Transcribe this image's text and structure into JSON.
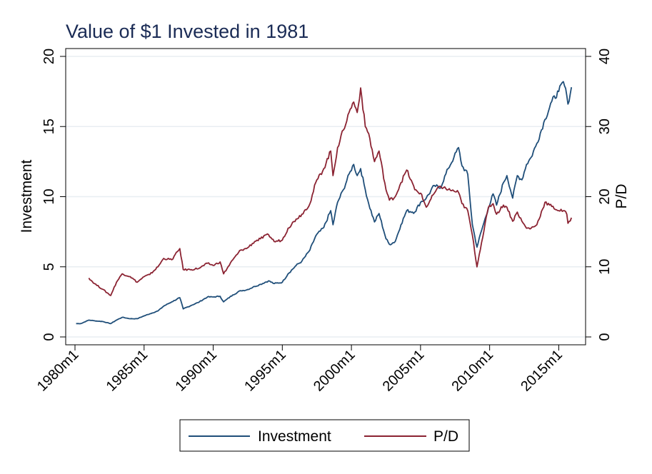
{
  "chart_data": {
    "type": "line",
    "title": "Value of $1 Invested in 1981",
    "xlabel": "",
    "x_ticks": [
      "1980m1",
      "1985m1",
      "1990m1",
      "1995m1",
      "2000m1",
      "2005m1",
      "2010m1",
      "2015m1"
    ],
    "xlim": [
      "1980m1",
      "2016m3"
    ],
    "y_left": {
      "label": "Investment",
      "ticks": [
        0,
        5,
        10,
        15,
        20
      ],
      "lim": [
        0,
        20
      ]
    },
    "y_right": {
      "label": "P/D",
      "ticks": [
        0,
        10,
        20,
        30,
        40
      ],
      "lim": [
        0,
        40
      ]
    },
    "grid": true,
    "legend_position": "bottom",
    "series": [
      {
        "name": "Investment",
        "axis": "left",
        "color": "#1f4e79",
        "points": [
          [
            "1980m2",
            0.95
          ],
          [
            "1980m6",
            0.95
          ],
          [
            "1981m1",
            1.2
          ],
          [
            "1981m6",
            1.15
          ],
          [
            "1982m1",
            1.1
          ],
          [
            "1982m8",
            0.95
          ],
          [
            "1983m1",
            1.2
          ],
          [
            "1983m6",
            1.4
          ],
          [
            "1984m1",
            1.3
          ],
          [
            "1984m7",
            1.3
          ],
          [
            "1985m1",
            1.5
          ],
          [
            "1985m6",
            1.65
          ],
          [
            "1986m1",
            1.85
          ],
          [
            "1986m6",
            2.2
          ],
          [
            "1987m1",
            2.5
          ],
          [
            "1987m8",
            2.8
          ],
          [
            "1987m11",
            2.0
          ],
          [
            "1988m6",
            2.25
          ],
          [
            "1989m1",
            2.5
          ],
          [
            "1989m8",
            2.85
          ],
          [
            "1990m1",
            2.85
          ],
          [
            "1990m7",
            2.9
          ],
          [
            "1990m10",
            2.5
          ],
          [
            "1991m6",
            3.0
          ],
          [
            "1992m1",
            3.3
          ],
          [
            "1992m6",
            3.35
          ],
          [
            "1993m1",
            3.6
          ],
          [
            "1993m6",
            3.75
          ],
          [
            "1994m1",
            4.0
          ],
          [
            "1994m6",
            3.8
          ],
          [
            "1995m1",
            3.9
          ],
          [
            "1995m6",
            4.5
          ],
          [
            "1996m1",
            5.1
          ],
          [
            "1996m6",
            5.4
          ],
          [
            "1997m1",
            6.2
          ],
          [
            "1997m6",
            7.2
          ],
          [
            "1998m1",
            7.8
          ],
          [
            "1998m7",
            9.0
          ],
          [
            "1998m9",
            8.0
          ],
          [
            "1999m1",
            9.6
          ],
          [
            "1999m6",
            10.5
          ],
          [
            "1999m12",
            11.8
          ],
          [
            "2000m3",
            12.3
          ],
          [
            "2000m6",
            11.5
          ],
          [
            "2000m9",
            12.0
          ],
          [
            "2001m1",
            10.5
          ],
          [
            "2001m4",
            9.5
          ],
          [
            "2001m9",
            8.2
          ],
          [
            "2002m1",
            8.8
          ],
          [
            "2002m7",
            7.0
          ],
          [
            "2002m10",
            6.6
          ],
          [
            "2003m3",
            6.8
          ],
          [
            "2003m8",
            8.0
          ],
          [
            "2004m1",
            9.0
          ],
          [
            "2004m8",
            8.9
          ],
          [
            "2005m1",
            9.6
          ],
          [
            "2005m6",
            9.9
          ],
          [
            "2006m1",
            10.8
          ],
          [
            "2006m6",
            10.6
          ],
          [
            "2007m1",
            12.0
          ],
          [
            "2007m6",
            12.8
          ],
          [
            "2007m10",
            13.5
          ],
          [
            "2008m1",
            12.2
          ],
          [
            "2008m6",
            11.6
          ],
          [
            "2008m10",
            8.0
          ],
          [
            "2009m2",
            6.4
          ],
          [
            "2009m6",
            7.6
          ],
          [
            "2009m12",
            9.2
          ],
          [
            "2010m4",
            10.2
          ],
          [
            "2010m7",
            9.4
          ],
          [
            "2011m1",
            11.0
          ],
          [
            "2011m4",
            11.5
          ],
          [
            "2011m9",
            9.9
          ],
          [
            "2012m1",
            11.5
          ],
          [
            "2012m5",
            11.2
          ],
          [
            "2012m9",
            12.3
          ],
          [
            "2013m1",
            12.8
          ],
          [
            "2013m6",
            13.8
          ],
          [
            "2014m1",
            15.5
          ],
          [
            "2014m7",
            16.8
          ],
          [
            "2015m1",
            17.5
          ],
          [
            "2015m5",
            18.2
          ],
          [
            "2015m8",
            17.2
          ],
          [
            "2015m9",
            16.6
          ],
          [
            "2015m12",
            17.8
          ]
        ]
      },
      {
        "name": "P/D",
        "axis": "right",
        "color": "#8b2332",
        "points": [
          [
            "1981m1",
            8.4
          ],
          [
            "1981m6",
            7.6
          ],
          [
            "1982m1",
            6.8
          ],
          [
            "1982m8",
            5.9
          ],
          [
            "1983m1",
            7.8
          ],
          [
            "1983m6",
            9.0
          ],
          [
            "1984m1",
            8.6
          ],
          [
            "1984m7",
            7.8
          ],
          [
            "1985m1",
            8.6
          ],
          [
            "1985m6",
            8.9
          ],
          [
            "1986m1",
            10.0
          ],
          [
            "1986m6",
            11.2
          ],
          [
            "1987m1",
            11.0
          ],
          [
            "1987m8",
            12.6
          ],
          [
            "1987m11",
            9.6
          ],
          [
            "1988m6",
            9.6
          ],
          [
            "1989m1",
            9.8
          ],
          [
            "1989m8",
            10.5
          ],
          [
            "1990m1",
            10.2
          ],
          [
            "1990m7",
            10.7
          ],
          [
            "1990m10",
            9.0
          ],
          [
            "1991m6",
            11.0
          ],
          [
            "1992m1",
            12.4
          ],
          [
            "1992m6",
            12.6
          ],
          [
            "1993m1",
            13.6
          ],
          [
            "1993m6",
            14.0
          ],
          [
            "1994m1",
            14.6
          ],
          [
            "1994m6",
            13.6
          ],
          [
            "1995m1",
            13.8
          ],
          [
            "1995m6",
            15.5
          ],
          [
            "1996m1",
            16.8
          ],
          [
            "1996m6",
            17.5
          ],
          [
            "1997m1",
            19.0
          ],
          [
            "1997m6",
            22.0
          ],
          [
            "1998m1",
            24.0
          ],
          [
            "1998m7",
            26.5
          ],
          [
            "1998m9",
            23.0
          ],
          [
            "1999m1",
            27.0
          ],
          [
            "1999m6",
            29.5
          ],
          [
            "1999m12",
            32.5
          ],
          [
            "2000m3",
            33.5
          ],
          [
            "2000m6",
            32.0
          ],
          [
            "2000m9",
            35.5
          ],
          [
            "2001m1",
            30.0
          ],
          [
            "2001m4",
            29.0
          ],
          [
            "2001m9",
            25.0
          ],
          [
            "2002m1",
            26.5
          ],
          [
            "2002m7",
            21.0
          ],
          [
            "2002m10",
            19.5
          ],
          [
            "2003m3",
            20.0
          ],
          [
            "2003m8",
            22.0
          ],
          [
            "2004m1",
            23.8
          ],
          [
            "2004m8",
            21.0
          ],
          [
            "2005m1",
            20.5
          ],
          [
            "2005m6",
            18.5
          ],
          [
            "2006m1",
            20.5
          ],
          [
            "2006m6",
            21.5
          ],
          [
            "2007m1",
            21.0
          ],
          [
            "2007m6",
            20.8
          ],
          [
            "2007m10",
            20.6
          ],
          [
            "2008m1",
            19.0
          ],
          [
            "2008m6",
            18.0
          ],
          [
            "2008m10",
            14.5
          ],
          [
            "2009m2",
            10.0
          ],
          [
            "2009m6",
            13.5
          ],
          [
            "2009m12",
            18.5
          ],
          [
            "2010m4",
            19.0
          ],
          [
            "2010m7",
            17.5
          ],
          [
            "2011m1",
            18.8
          ],
          [
            "2011m4",
            18.5
          ],
          [
            "2011m9",
            16.5
          ],
          [
            "2012m1",
            17.8
          ],
          [
            "2012m5",
            16.5
          ],
          [
            "2012m9",
            15.5
          ],
          [
            "2013m1",
            15.5
          ],
          [
            "2013m6",
            16.0
          ],
          [
            "2014m1",
            19.2
          ],
          [
            "2014m7",
            18.6
          ],
          [
            "2015m1",
            18.0
          ],
          [
            "2015m5",
            18.0
          ],
          [
            "2015m8",
            17.5
          ],
          [
            "2015m9",
            16.2
          ],
          [
            "2015m12",
            17.0
          ]
        ]
      }
    ]
  }
}
